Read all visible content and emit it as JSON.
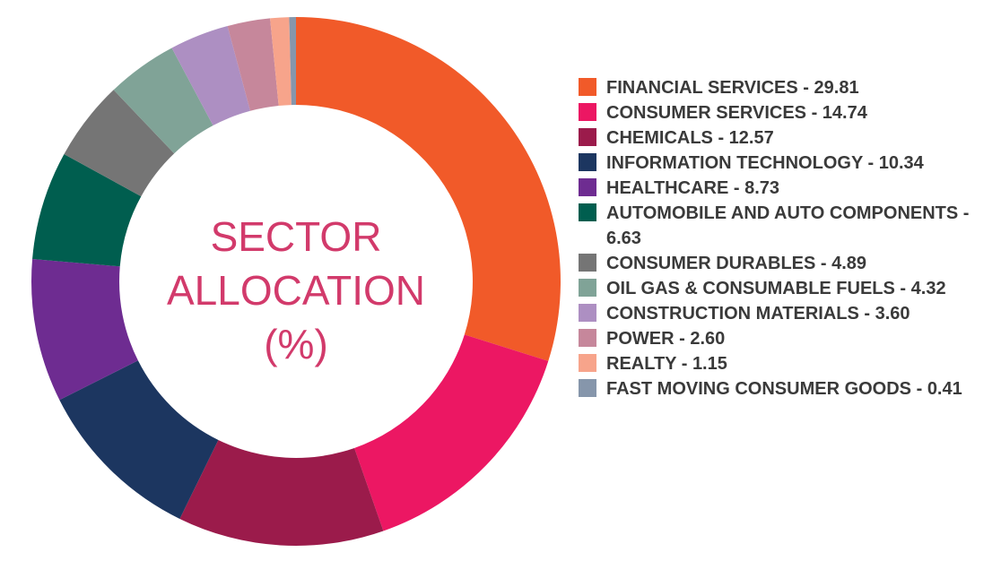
{
  "chart_data": {
    "type": "donut",
    "title": "SECTOR ALLOCATION (%)",
    "categories": [
      "FINANCIAL SERVICES",
      "CONSUMER SERVICES",
      "CHEMICALS",
      "INFORMATION TECHNOLOGY",
      "HEALTHCARE",
      "AUTOMOBILE AND AUTO COMPONENTS",
      "CONSUMER DURABLES",
      "OIL GAS & CONSUMABLE FUELS",
      "CONSTRUCTION MATERIALS",
      "POWER",
      "REALTY",
      "FAST MOVING CONSUMER GOODS"
    ],
    "values": [
      29.81,
      14.74,
      12.57,
      10.34,
      8.73,
      6.63,
      4.89,
      4.32,
      3.6,
      2.6,
      1.15,
      0.41
    ],
    "value_labels": [
      "29.81",
      "14.74",
      "12.57",
      "10.34",
      "8.73",
      "6.63",
      "4.89",
      "4.32",
      "3.60",
      "2.60",
      "1.15",
      "0.41"
    ],
    "colors": [
      "#f15a29",
      "#ec1763",
      "#9b1b4b",
      "#1c3660",
      "#6e2c91",
      "#005e4f",
      "#757575",
      "#80a397",
      "#ad8fc2",
      "#c6879b",
      "#f7a48b",
      "#8696ab"
    ],
    "legend": "right"
  }
}
